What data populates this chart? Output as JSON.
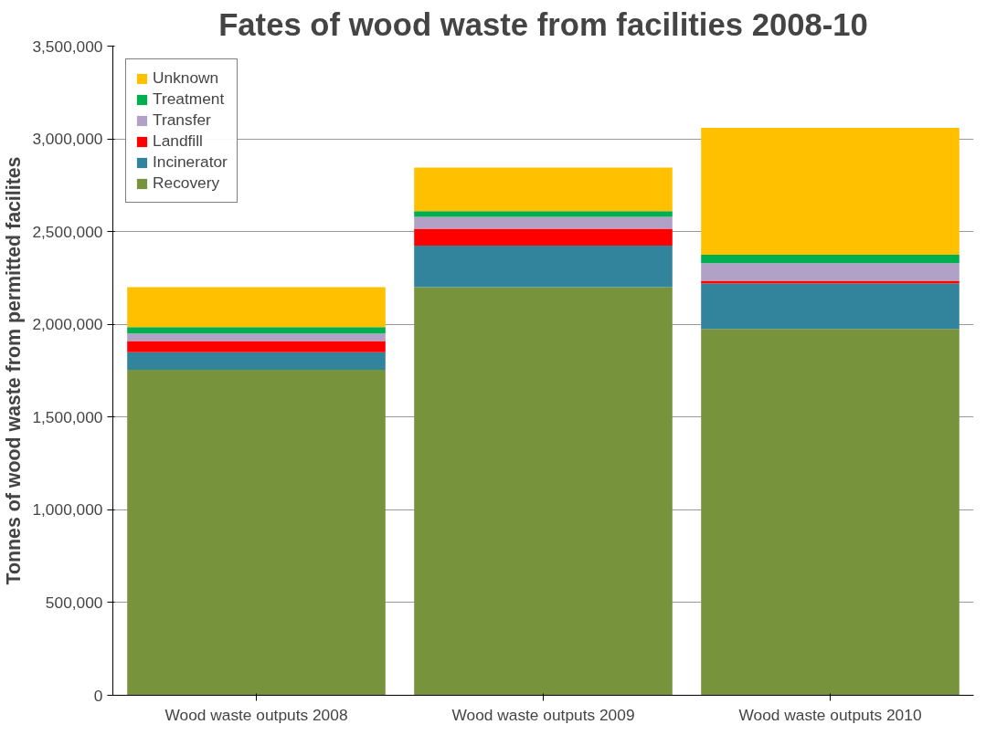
{
  "chart_data": {
    "type": "bar",
    "stacked": true,
    "title": "Fates of wood waste from facilities 2008-10",
    "ylabel": "Tonnes of wood waste from permitted facilites",
    "categories": [
      "Wood waste outputs 2008",
      "Wood waste outputs 2009",
      "Wood waste outputs 2010"
    ],
    "series": [
      {
        "name": "Recovery",
        "color": "#77933c",
        "values": [
          1755000,
          2200000,
          1975000
        ]
      },
      {
        "name": "Incinerator",
        "color": "#31849b",
        "values": [
          95000,
          225000,
          245000
        ]
      },
      {
        "name": "Landfill",
        "color": "#ff0000",
        "values": [
          60000,
          90000,
          15000
        ]
      },
      {
        "name": "Transfer",
        "color": "#b2a1c7",
        "values": [
          40000,
          65000,
          95000
        ]
      },
      {
        "name": "Treatment",
        "color": "#00b050",
        "values": [
          35000,
          30000,
          45000
        ]
      },
      {
        "name": "Unknown",
        "color": "#ffc000",
        "values": [
          215000,
          235000,
          685000
        ]
      }
    ],
    "ylim": [
      0,
      3500000
    ],
    "yticks": [
      {
        "value": 0,
        "label": "0"
      },
      {
        "value": 500000,
        "label": "500,000"
      },
      {
        "value": 1000000,
        "label": "1,000,000"
      },
      {
        "value": 1500000,
        "label": "1,500,000"
      },
      {
        "value": 2000000,
        "label": "2,000,000"
      },
      {
        "value": 2500000,
        "label": "2,500,000"
      },
      {
        "value": 3000000,
        "label": "3,000,000"
      },
      {
        "value": 3500000,
        "label": "3,500,000"
      }
    ],
    "grid": "y",
    "legend": "top left"
  }
}
